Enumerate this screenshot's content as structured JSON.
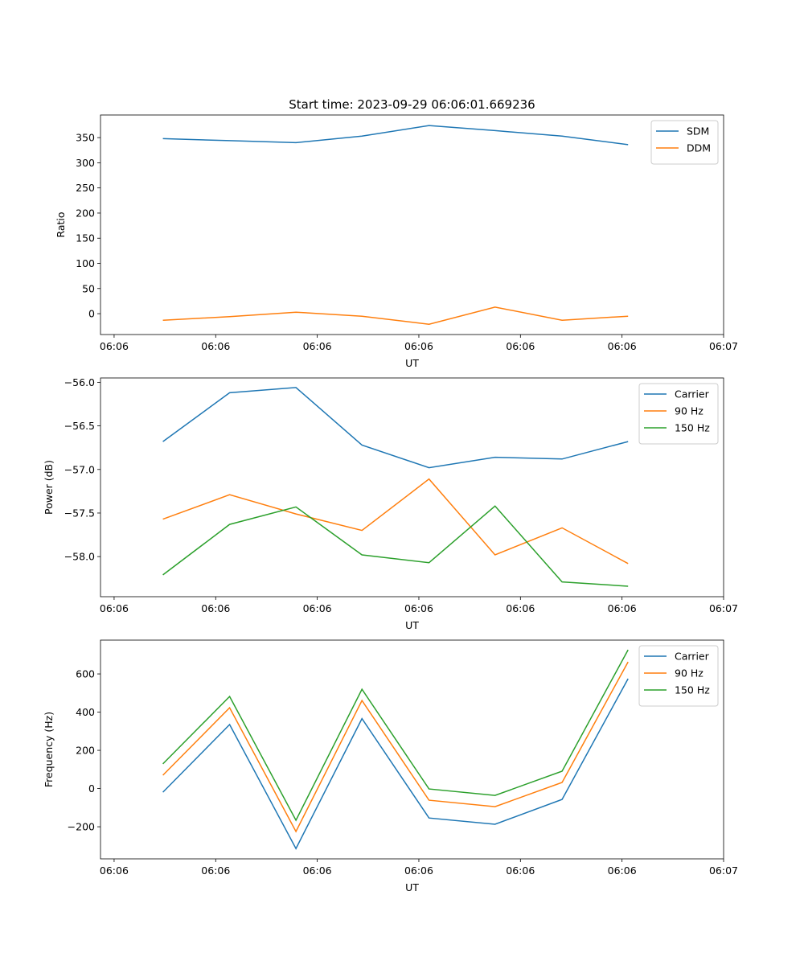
{
  "chart_data": [
    {
      "type": "line",
      "title": "Start time: 2023-09-29 06:06:01.669236",
      "xlabel": "UT",
      "ylabel": "Ratio",
      "x_seconds_after_0606": [
        4.8,
        11.37,
        17.9,
        24.4,
        31.0,
        37.5,
        44.1,
        50.6
      ],
      "xlim": [
        -1.34,
        60
      ],
      "xticks": [
        0,
        10,
        20,
        30,
        40,
        50,
        60
      ],
      "xtick_labels": [
        "06:06",
        "06:06",
        "06:06",
        "06:06",
        "06:06",
        "06:06",
        "06:07"
      ],
      "ylim": [
        -41.5,
        395
      ],
      "yticks": [
        0,
        50,
        100,
        150,
        200,
        250,
        300,
        350
      ],
      "ytick_labels": [
        "0",
        "50",
        "100",
        "150",
        "200",
        "250",
        "300",
        "350"
      ],
      "legend": "top-right",
      "series": [
        {
          "name": "SDM",
          "color": "#1f77b4",
          "values": [
            348,
            344,
            340,
            353,
            374,
            364,
            353,
            336
          ]
        },
        {
          "name": "DDM",
          "color": "#ff7f0e",
          "values": [
            -13,
            -6,
            3,
            -5,
            -21,
            13,
            -13,
            -5
          ]
        }
      ]
    },
    {
      "type": "line",
      "title": "",
      "xlabel": "UT",
      "ylabel": "Power (dB)",
      "x_seconds_after_0606": [
        4.8,
        11.37,
        17.9,
        24.4,
        31.0,
        37.5,
        44.1,
        50.6
      ],
      "xlim": [
        -1.34,
        60
      ],
      "xticks": [
        0,
        10,
        20,
        30,
        40,
        50,
        60
      ],
      "xtick_labels": [
        "06:06",
        "06:06",
        "06:06",
        "06:06",
        "06:06",
        "06:06",
        "06:07"
      ],
      "ylim": [
        -58.46,
        -55.95
      ],
      "yticks": [
        -58.0,
        -57.5,
        -57.0,
        -56.5,
        -56.0
      ],
      "ytick_labels": [
        "−58.0",
        "−57.5",
        "−57.0",
        "−56.5",
        "−56.0"
      ],
      "legend": "top-right",
      "series": [
        {
          "name": "Carrier",
          "color": "#1f77b4",
          "values": [
            -56.68,
            -56.12,
            -56.06,
            -56.72,
            -56.98,
            -56.86,
            -56.88,
            -56.68
          ]
        },
        {
          "name": "90 Hz",
          "color": "#ff7f0e",
          "values": [
            -57.57,
            -57.29,
            -57.51,
            -57.7,
            -57.11,
            -57.98,
            -57.67,
            -58.08
          ]
        },
        {
          "name": "150 Hz",
          "color": "#2ca02c",
          "values": [
            -58.21,
            -57.63,
            -57.43,
            -57.98,
            -58.07,
            -57.42,
            -58.29,
            -58.34
          ]
        }
      ]
    },
    {
      "type": "line",
      "title": "",
      "xlabel": "UT",
      "ylabel": "Frequency (Hz)",
      "x_seconds_after_0606": [
        4.8,
        11.37,
        17.9,
        24.4,
        31.0,
        37.5,
        44.1,
        50.6
      ],
      "xlim": [
        -1.34,
        60
      ],
      "xticks": [
        0,
        10,
        20,
        30,
        40,
        50,
        60
      ],
      "xtick_labels": [
        "06:06",
        "06:06",
        "06:06",
        "06:06",
        "06:06",
        "06:06",
        "06:07"
      ],
      "ylim": [
        -368,
        777
      ],
      "yticks": [
        -200,
        0,
        200,
        400,
        600
      ],
      "ytick_labels": [
        "−200",
        "0",
        "200",
        "400",
        "600"
      ],
      "legend": "top-right",
      "series": [
        {
          "name": "Carrier",
          "color": "#1f77b4",
          "values": [
            -19,
            335,
            -314,
            366,
            -154,
            -187,
            -57,
            575
          ]
        },
        {
          "name": "90 Hz",
          "color": "#ff7f0e",
          "values": [
            70,
            423,
            -225,
            461,
            -61,
            -95,
            32,
            663
          ]
        },
        {
          "name": "150 Hz",
          "color": "#2ca02c",
          "values": [
            129,
            482,
            -166,
            520,
            -2,
            -36,
            91,
            726
          ]
        }
      ]
    }
  ]
}
